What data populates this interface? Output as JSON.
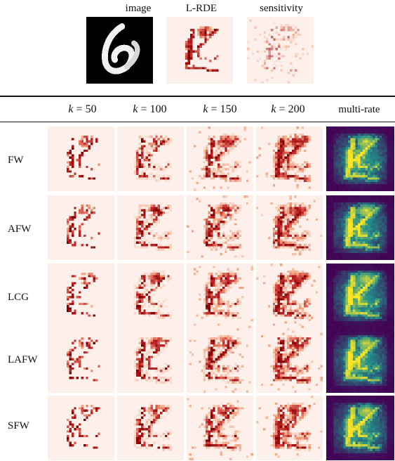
{
  "top_images": [
    {
      "label": "image",
      "kind": "digit"
    },
    {
      "label": "L-RDE",
      "kind": "lrde"
    },
    {
      "label": "sensitivity",
      "kind": "sensitivity"
    }
  ],
  "column_headers": [
    {
      "var": "k",
      "eq": " = ",
      "value": "50"
    },
    {
      "var": "k",
      "eq": " = ",
      "value": "100"
    },
    {
      "var": "k",
      "eq": " = ",
      "value": "150"
    },
    {
      "var": "k",
      "eq": " = ",
      "value": "200"
    },
    {
      "var": "",
      "eq": "",
      "value": "multi-rate"
    }
  ],
  "row_labels": [
    "FW",
    "AFW",
    "LCG",
    "LAFW",
    "SFW"
  ],
  "colors": {
    "background_panel": "#fdf0ea",
    "relevance_dark": "#800000",
    "relevance_mid": "#c0282a",
    "relevance_light": "#f4a583",
    "multirate_low": "#440154",
    "multirate_mid": "#21918c",
    "multirate_high": "#fde725"
  }
}
